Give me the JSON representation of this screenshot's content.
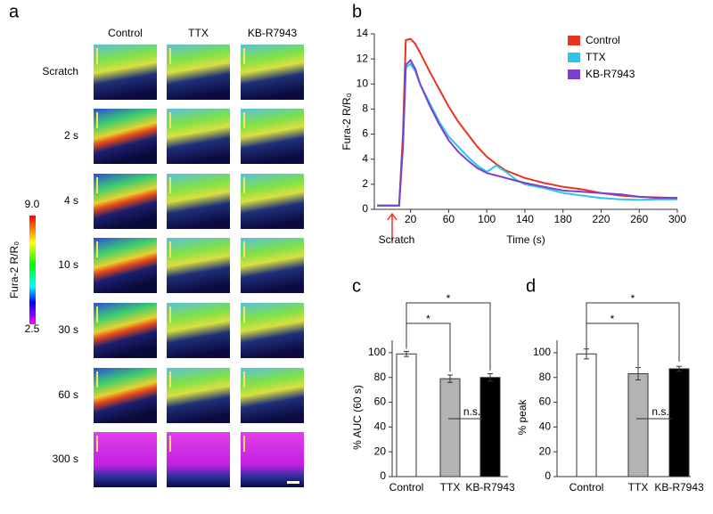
{
  "panel_labels": [
    "a",
    "b",
    "c",
    "d"
  ],
  "panel_a": {
    "columns": [
      "Control",
      "TTX",
      "KB-R7943"
    ],
    "rows": [
      "Scratch",
      "2 s",
      "4 s",
      "10 s",
      "30 s",
      "60 s",
      "300 s"
    ],
    "colorbar": {
      "label": "Fura-2 R/R₀",
      "max": "9.0",
      "min": "2.5"
    }
  },
  "chart_data": [
    {
      "type": "line",
      "ylabel": "Fura-2 R/R₀",
      "xlabel": "Time (s)",
      "annotation": "Scratch",
      "x": [
        -15,
        0,
        8,
        12,
        15,
        20,
        25,
        30,
        40,
        50,
        60,
        70,
        80,
        90,
        100,
        110,
        120,
        130,
        140,
        160,
        180,
        200,
        220,
        240,
        260,
        280,
        300
      ],
      "series": [
        {
          "name": "Control",
          "color": "#e8341c",
          "values": [
            0.3,
            0.3,
            0.3,
            6,
            13.5,
            13.6,
            13.2,
            12.5,
            11,
            9.6,
            8.2,
            7,
            6,
            5,
            4.2,
            3.6,
            3.1,
            2.8,
            2.5,
            2.1,
            1.8,
            1.6,
            1.3,
            1.1,
            1.0,
            0.95,
            0.9
          ]
        },
        {
          "name": "TTX",
          "color": "#2ec4e6",
          "values": [
            0.3,
            0.3,
            0.3,
            5,
            11.3,
            11.6,
            11,
            10,
            8.5,
            7,
            5.8,
            5,
            4.2,
            3.5,
            3.0,
            3.5,
            3.0,
            2.4,
            2.0,
            1.7,
            1.3,
            1.1,
            0.9,
            0.8,
            0.75,
            0.8,
            0.8
          ]
        },
        {
          "name": "KB-R7943",
          "color": "#7b3fd0",
          "values": [
            0.3,
            0.3,
            0.3,
            5,
            11.5,
            11.9,
            11.2,
            10,
            8.3,
            6.8,
            5.5,
            4.6,
            3.9,
            3.3,
            2.9,
            2.7,
            2.5,
            2.3,
            2.1,
            1.8,
            1.5,
            1.4,
            1.3,
            1.2,
            1.0,
            0.9,
            0.9
          ]
        }
      ],
      "xlim": [
        -18,
        300
      ],
      "ylim": [
        0,
        14
      ],
      "xticks": [
        20,
        60,
        100,
        140,
        180,
        220,
        260,
        300
      ],
      "yticks": [
        0,
        2,
        4,
        6,
        8,
        10,
        12,
        14
      ]
    },
    {
      "type": "bar",
      "ylabel": "% AUC (60 s)",
      "categories": [
        "Control",
        "TTX",
        "KB-R7943"
      ],
      "values": [
        99,
        79,
        80
      ],
      "errors": [
        2,
        3,
        3
      ],
      "colors": [
        "#ffffff",
        "#b3b3b3",
        "#000000"
      ],
      "ylim": [
        0,
        110
      ],
      "yticks": [
        0,
        20,
        40,
        60,
        80,
        100
      ],
      "annotations": [
        "*",
        "*",
        "n.s."
      ]
    },
    {
      "type": "bar",
      "ylabel": "% peak",
      "categories": [
        "Control",
        "TTX",
        "KB-R7943"
      ],
      "values": [
        99,
        83,
        87
      ],
      "errors": [
        4,
        5,
        2
      ],
      "colors": [
        "#ffffff",
        "#b3b3b3",
        "#000000"
      ],
      "ylim": [
        0,
        110
      ],
      "yticks": [
        0,
        20,
        40,
        60,
        80,
        100
      ],
      "annotations": [
        "*",
        "*",
        "n.s."
      ]
    }
  ]
}
